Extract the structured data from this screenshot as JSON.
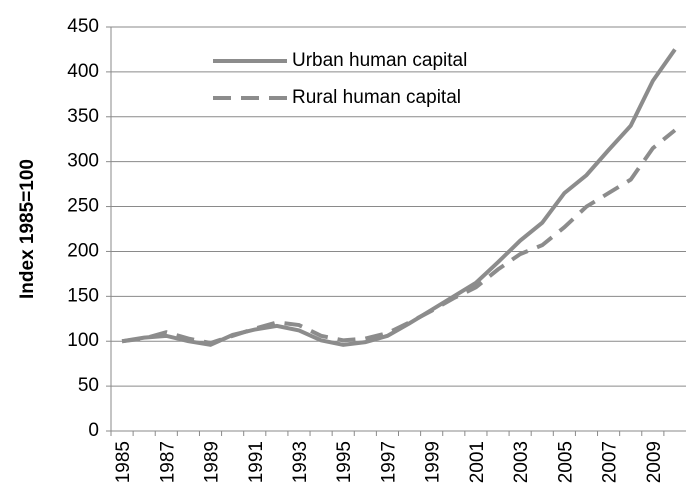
{
  "chart_data": {
    "type": "line",
    "y_label": "Index 1985=100",
    "categories": [
      "1985",
      null,
      "1987",
      null,
      "1989",
      null,
      "1991",
      null,
      "1993",
      null,
      "1995",
      null,
      "1997",
      null,
      "1999",
      null,
      "2001",
      null,
      "2003",
      null,
      "2005",
      null,
      "2007",
      null,
      "2009",
      null
    ],
    "series": [
      {
        "name": "Urban human capital",
        "color": "#8c8c8c",
        "dash": "solid",
        "values": [
          100,
          104,
          106,
          100,
          96,
          107,
          113,
          117,
          112,
          101,
          96,
          99,
          106,
          120,
          135,
          150,
          165,
          188,
          212,
          232,
          265,
          285,
          313,
          340,
          390,
          425
        ]
      },
      {
        "name": "Rural human capital",
        "color": "#8c8c8c",
        "dash": "dashed",
        "values": [
          100,
          103,
          110,
          103,
          98,
          106,
          114,
          121,
          118,
          106,
          101,
          103,
          109,
          121,
          134,
          148,
          160,
          180,
          197,
          207,
          227,
          250,
          265,
          280,
          315,
          335
        ]
      }
    ],
    "ylim": [
      0,
      450
    ],
    "yticks": [
      0,
      50,
      100,
      150,
      200,
      250,
      300,
      350,
      400,
      450
    ],
    "grid": true,
    "legend": "top"
  }
}
